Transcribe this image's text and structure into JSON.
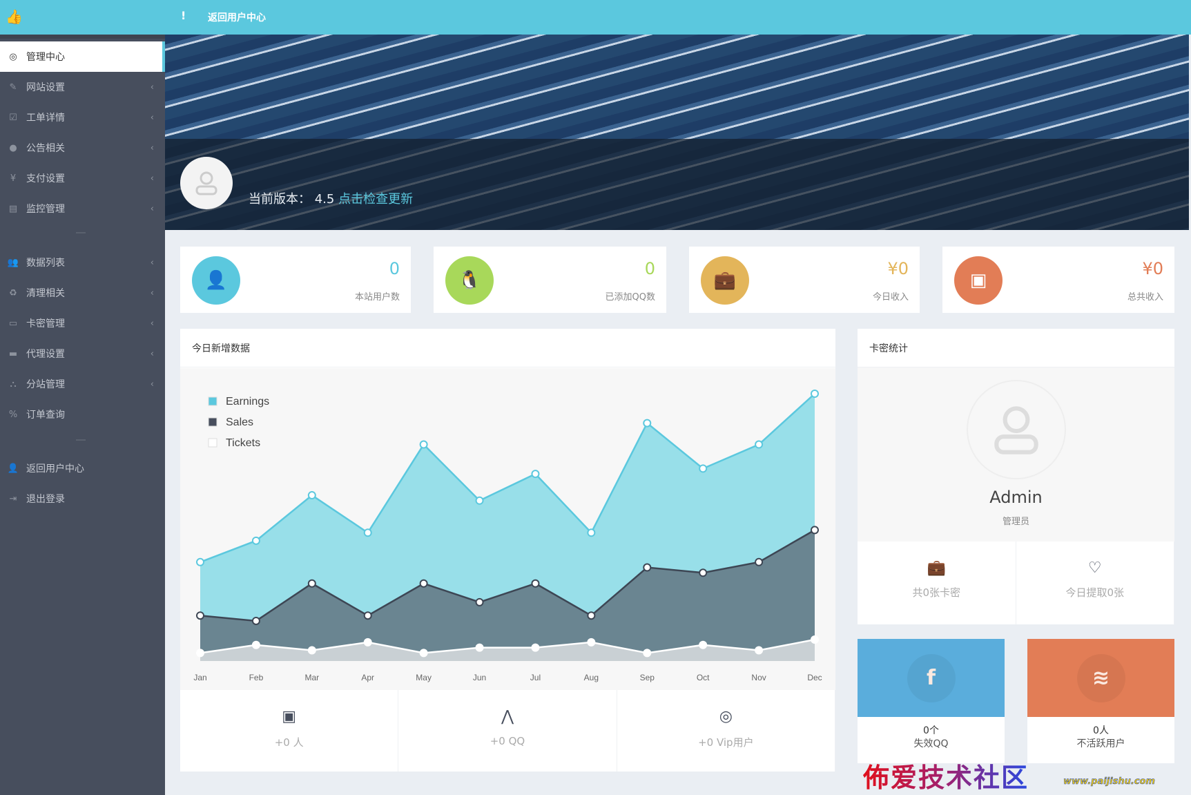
{
  "header": {
    "logo_icon": "thumbs-up-icon",
    "more_icon": "exclamation-icon",
    "back_link": "返回用户中心"
  },
  "sidebar": {
    "items": [
      {
        "label": "管理中心",
        "icon": "dashboard-icon",
        "active": true,
        "chevron": false
      },
      {
        "label": "网站设置",
        "icon": "pencil-icon",
        "chevron": true
      },
      {
        "label": "工单详情",
        "icon": "check-square-icon",
        "chevron": true
      },
      {
        "label": "公告相关",
        "icon": "exclamation-circle-icon",
        "chevron": true
      },
      {
        "label": "支付设置",
        "icon": "yen-icon",
        "chevron": true
      },
      {
        "label": "监控管理",
        "icon": "server-icon",
        "chevron": true
      },
      {
        "label": "数据列表",
        "icon": "users-icon",
        "chevron": true
      },
      {
        "label": "清理相关",
        "icon": "recycle-icon",
        "chevron": true
      },
      {
        "label": "卡密管理",
        "icon": "credit-card-icon",
        "chevron": true
      },
      {
        "label": "代理设置",
        "icon": "keyboard-icon",
        "chevron": true
      },
      {
        "label": "分站管理",
        "icon": "sitemap-icon",
        "chevron": true
      },
      {
        "label": "订单查询",
        "icon": "percent-icon",
        "chevron": false
      },
      {
        "label": "返回用户中心",
        "icon": "user-icon",
        "chevron": false
      },
      {
        "label": "退出登录",
        "icon": "sign-out-icon",
        "chevron": false
      }
    ]
  },
  "banner": {
    "version_label": "当前版本：",
    "version": "4.5",
    "update_link": "点击检查更新"
  },
  "cards": [
    {
      "value": "0",
      "label": "本站用户数",
      "color": "#5bc8de",
      "icon": "user-icon"
    },
    {
      "value": "0",
      "label": "已添加QQ数",
      "color": "#a8d85a",
      "icon": "qq-icon"
    },
    {
      "value": "¥0",
      "label": "今日收入",
      "color": "#e3b55a",
      "icon": "briefcase-icon"
    },
    {
      "value": "¥0",
      "label": "总共收入",
      "color": "#e27d56",
      "icon": "wallet-icon"
    }
  ],
  "chart_panel": {
    "title": "今日新增数据",
    "footer": [
      {
        "icon": "wallet-icon",
        "text": "+0 人"
      },
      {
        "icon": "pulse-icon",
        "text": "+0 QQ"
      },
      {
        "icon": "life-ring-icon",
        "text": "+0 Vip用户"
      }
    ]
  },
  "chart_data": {
    "type": "area",
    "x": [
      "Jan",
      "Feb",
      "Mar",
      "Apr",
      "May",
      "Jun",
      "Jul",
      "Aug",
      "Sep",
      "Oct",
      "Nov",
      "Dec"
    ],
    "series": [
      {
        "name": "Earnings",
        "color": "#5bc8de",
        "values": [
          37,
          45,
          62,
          48,
          81,
          60,
          70,
          48,
          89,
          72,
          81,
          100
        ]
      },
      {
        "name": "Sales",
        "color": "#474e5d",
        "values": [
          17,
          15,
          29,
          17,
          29,
          22,
          29,
          17,
          35,
          33,
          37,
          49
        ]
      },
      {
        "name": "Tickets",
        "color": "#ffffff",
        "values": [
          3,
          6,
          4,
          7,
          3,
          5,
          5,
          7,
          3,
          6,
          4,
          8
        ]
      }
    ],
    "legend": "top-left",
    "grid": false
  },
  "card_panel": {
    "title": "卡密统计",
    "name": "Admin",
    "role": "管理员",
    "stats": [
      {
        "icon": "briefcase-icon",
        "text": "共0张卡密"
      },
      {
        "icon": "heart-icon",
        "text": "今日提取0张"
      }
    ]
  },
  "tiles": [
    {
      "value": "0个",
      "label": "失效QQ",
      "color": "#5aaddc",
      "icon": "facebook-icon"
    },
    {
      "value": "0人",
      "label": "不活跃用户",
      "color": "#e27d56",
      "icon": "database-icon"
    }
  ],
  "watermark": {
    "text": "佈爱技术社区",
    "url": "www.paijishu.com"
  }
}
